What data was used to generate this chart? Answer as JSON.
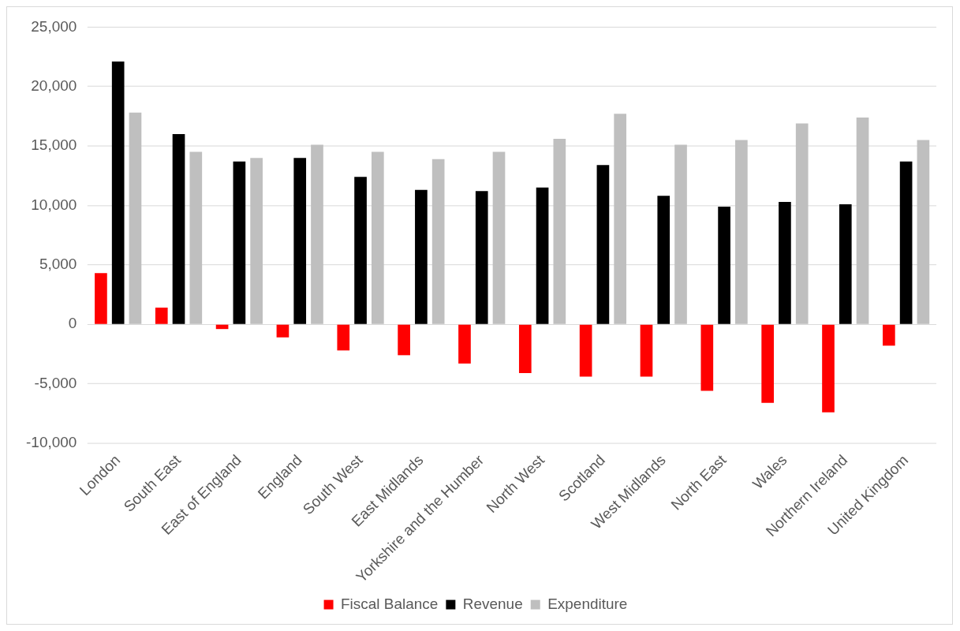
{
  "chart_data": {
    "type": "bar",
    "categories": [
      "London",
      "South East",
      "East of England",
      "England",
      "South West",
      "East Midlands",
      "Yorkshire and the Humber",
      "North West",
      "Scotland",
      "West Midlands",
      "North East",
      "Wales",
      "Northern Ireland",
      "United Kingdom"
    ],
    "series": [
      {
        "name": "Fiscal Balance",
        "color": "#ff0000",
        "values": [
          4300,
          1400,
          -400,
          -1100,
          -2200,
          -2600,
          -3300,
          -4100,
          -4400,
          -4400,
          -5600,
          -6600,
          -7400,
          -1800
        ]
      },
      {
        "name": "Revenue",
        "color": "#000000",
        "values": [
          22100,
          16000,
          13700,
          14000,
          12400,
          11300,
          11200,
          11500,
          13400,
          10800,
          9900,
          10300,
          10100,
          13700
        ]
      },
      {
        "name": "Expenditure",
        "color": "#bfbfbf",
        "values": [
          17800,
          14500,
          14000,
          15100,
          14500,
          13900,
          14500,
          15600,
          17700,
          15100,
          15500,
          16900,
          17400,
          15500
        ]
      }
    ],
    "ylim": [
      -10000,
      25000
    ],
    "yticks": [
      {
        "value": -10000,
        "label": "-10,000"
      },
      {
        "value": -5000,
        "label": "-5,000"
      },
      0,
      {
        "value": 5000,
        "label": "5,000"
      },
      {
        "value": 10000,
        "label": "10,000"
      },
      {
        "value": 15000,
        "label": "15,000"
      },
      {
        "value": 20000,
        "label": "20,000"
      },
      {
        "value": 25000,
        "label": "25,000"
      }
    ],
    "grid": "y",
    "legend": "bottom"
  }
}
